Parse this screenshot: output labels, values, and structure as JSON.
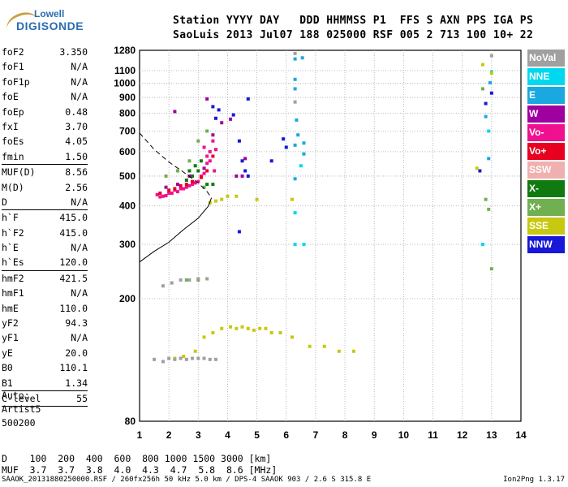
{
  "logo": {
    "line1": "Lowell",
    "line2": "DIGISONDE"
  },
  "header": {
    "line1": "Station YYYY DAY   DDD HHMMSS P1  FFS S AXN PPS IGA PS",
    "line2": "SaoLuis 2013 Jul07 188 025000 RSF 005 2 713 100 10+ 22"
  },
  "params": [
    {
      "k": "foF2",
      "v": "3.350"
    },
    {
      "k": "foF1",
      "v": "N/A"
    },
    {
      "k": "foF1p",
      "v": "N/A"
    },
    {
      "k": "foE",
      "v": "N/A"
    },
    {
      "k": "foEp",
      "v": "0.48"
    },
    {
      "k": "fxI",
      "v": "3.70"
    },
    {
      "k": "foEs",
      "v": "4.05"
    },
    {
      "k": "fmin",
      "v": "1.50"
    },
    {
      "k": "MUF(D)",
      "v": "8.56"
    },
    {
      "k": "M(D)",
      "v": "2.56"
    },
    {
      "k": "D",
      "v": "N/A"
    },
    {
      "k": "h`F",
      "v": "415.0"
    },
    {
      "k": "h`F2",
      "v": "415.0"
    },
    {
      "k": "h`E",
      "v": "N/A"
    },
    {
      "k": "h`Es",
      "v": "120.0"
    },
    {
      "k": "hmF2",
      "v": "421.5"
    },
    {
      "k": "hmF1",
      "v": "N/A"
    },
    {
      "k": "hmE",
      "v": "110.0"
    },
    {
      "k": "yF2",
      "v": "94.3"
    },
    {
      "k": "yF1",
      "v": "N/A"
    },
    {
      "k": "yE",
      "v": "20.0"
    },
    {
      "k": "B0",
      "v": "110.1"
    },
    {
      "k": "B1",
      "v": "1.34"
    },
    {
      "k": "C-level",
      "v": "55"
    }
  ],
  "auto": {
    "l1": "Auto:",
    "l2": "Artist5",
    "l3": "500200"
  },
  "legend": [
    {
      "label": "NoVal",
      "color": "#a0a0a0"
    },
    {
      "label": "NNE",
      "color": "#00d8f0"
    },
    {
      "label": "E",
      "color": "#1aa8e0"
    },
    {
      "label": "W",
      "color": "#a000a0"
    },
    {
      "label": "Vo-",
      "color": "#f01090"
    },
    {
      "label": "Vo+",
      "color": "#e80020"
    },
    {
      "label": "SSW",
      "color": "#f0b0b0"
    },
    {
      "label": "X-",
      "color": "#107a10"
    },
    {
      "label": "X+",
      "color": "#70b050"
    },
    {
      "label": "SSE",
      "color": "#c8c810"
    },
    {
      "label": "NNW",
      "color": "#1818d8"
    }
  ],
  "dmuf": {
    "line1": "D    100  200  400  600  800 1000 1500 3000 [km]",
    "line2": "MUF  3.7  3.7  3.8  4.0  4.3  4.7  5.8  8.6 [MHz]"
  },
  "footer": {
    "left": "SAAOK_20131880250000.RSF / 260fx256h 50 kHz 5.0 km / DPS-4 SAAOK 903 / 2.6 S 315.8 E",
    "right": "Ion2Png 1.3.17"
  },
  "chart_data": {
    "type": "scatter",
    "title": "",
    "xlabel": "",
    "ylabel": "",
    "xlim": [
      1,
      14
    ],
    "ylim": [
      80,
      1280
    ],
    "y_scale": "log",
    "grid": true,
    "x_ticks": [
      1,
      2,
      3,
      4,
      5,
      6,
      7,
      8,
      9,
      10,
      11,
      12,
      13,
      14
    ],
    "y_ticks": [
      80,
      200,
      300,
      400,
      500,
      600,
      700,
      800,
      900,
      1000,
      1100,
      1280
    ],
    "series": [
      {
        "color": "#f01090",
        "points": [
          [
            1.6,
            435
          ],
          [
            1.8,
            430
          ],
          [
            2.0,
            440
          ],
          [
            2.2,
            450
          ],
          [
            2.4,
            455
          ],
          [
            2.6,
            460
          ],
          [
            2.8,
            470
          ],
          [
            3.0,
            480
          ],
          [
            3.2,
            510
          ],
          [
            3.3,
            550
          ],
          [
            3.4,
            600
          ],
          [
            3.5,
            650
          ],
          [
            3.3,
            580
          ],
          [
            3.1,
            500
          ],
          [
            2.9,
            475
          ],
          [
            2.7,
            465
          ],
          [
            2.5,
            455
          ],
          [
            2.3,
            445
          ],
          [
            2.1,
            440
          ],
          [
            1.9,
            432
          ],
          [
            1.7,
            428
          ],
          [
            3.6,
            610
          ],
          [
            3.4,
            560
          ],
          [
            3.55,
            520
          ],
          [
            3.2,
            620
          ]
        ]
      },
      {
        "color": "#e80020",
        "points": [
          [
            1.7,
            440
          ],
          [
            2.0,
            450
          ],
          [
            2.4,
            465
          ],
          [
            2.8,
            480
          ],
          [
            3.1,
            495
          ],
          [
            3.3,
            520
          ],
          [
            3.5,
            580
          ],
          [
            2.6,
            470
          ],
          [
            2.2,
            455
          ]
        ]
      },
      {
        "color": "#107a10",
        "points": [
          [
            2.7,
            520
          ],
          [
            2.9,
            540
          ],
          [
            3.1,
            560
          ],
          [
            3.3,
            470
          ],
          [
            3.5,
            470
          ],
          [
            2.8,
            500
          ],
          [
            3.0,
            520
          ],
          [
            2.6,
            485
          ]
        ]
      },
      {
        "color": "#a000a0",
        "points": [
          [
            1.9,
            460
          ],
          [
            2.3,
            470
          ],
          [
            2.7,
            500
          ],
          [
            3.2,
            530
          ],
          [
            3.5,
            680
          ],
          [
            2.2,
            810
          ],
          [
            3.3,
            890
          ],
          [
            3.8,
            745
          ],
          [
            4.1,
            765
          ],
          [
            4.3,
            500
          ],
          [
            4.5,
            500
          ],
          [
            4.6,
            570
          ]
        ]
      },
      {
        "color": "#1818d8",
        "points": [
          [
            3.5,
            840
          ],
          [
            3.7,
            820
          ],
          [
            4.2,
            790
          ],
          [
            4.4,
            650
          ],
          [
            4.5,
            560
          ],
          [
            4.6,
            520
          ],
          [
            4.7,
            500
          ],
          [
            5.5,
            560
          ],
          [
            5.9,
            660
          ],
          [
            4.4,
            330
          ],
          [
            6.0,
            620
          ],
          [
            12.6,
            520
          ],
          [
            12.8,
            860
          ],
          [
            13.0,
            930
          ],
          [
            3.6,
            770
          ],
          [
            4.7,
            890
          ]
        ]
      },
      {
        "color": "#1aa8e0",
        "points": [
          [
            6.3,
            490
          ],
          [
            6.3,
            630
          ],
          [
            6.4,
            680
          ],
          [
            6.35,
            760
          ],
          [
            6.6,
            590
          ],
          [
            6.6,
            640
          ],
          [
            6.55,
            1210
          ],
          [
            6.3,
            1200
          ],
          [
            6.3,
            960
          ],
          [
            6.3,
            1030
          ],
          [
            12.8,
            780
          ],
          [
            12.9,
            570
          ],
          [
            12.95,
            1005
          ]
        ]
      },
      {
        "color": "#00d8f0",
        "points": [
          [
            6.3,
            380
          ],
          [
            6.3,
            300
          ],
          [
            6.5,
            540
          ],
          [
            6.6,
            300
          ],
          [
            12.9,
            700
          ],
          [
            13.0,
            1090
          ],
          [
            12.7,
            300
          ]
        ]
      },
      {
        "color": "#c8c810",
        "points": [
          [
            2.2,
            128
          ],
          [
            2.5,
            130
          ],
          [
            2.9,
            135
          ],
          [
            3.2,
            150
          ],
          [
            3.5,
            155
          ],
          [
            3.8,
            160
          ],
          [
            4.1,
            162
          ],
          [
            4.3,
            160
          ],
          [
            4.5,
            162
          ],
          [
            4.7,
            160
          ],
          [
            4.9,
            158
          ],
          [
            5.1,
            160
          ],
          [
            5.3,
            160
          ],
          [
            5.5,
            155
          ],
          [
            5.8,
            155
          ],
          [
            6.2,
            150
          ],
          [
            6.8,
            140
          ],
          [
            7.3,
            140
          ],
          [
            7.8,
            135
          ],
          [
            8.3,
            135
          ],
          [
            3.4,
            410
          ],
          [
            3.6,
            415
          ],
          [
            3.8,
            420
          ],
          [
            4.0,
            430
          ],
          [
            4.3,
            430
          ],
          [
            5.0,
            420
          ],
          [
            6.2,
            420
          ],
          [
            12.5,
            530
          ],
          [
            13.0,
            1080
          ],
          [
            12.7,
            1150
          ]
        ]
      },
      {
        "color": "#70b050",
        "points": [
          [
            1.9,
            500
          ],
          [
            2.3,
            520
          ],
          [
            2.7,
            560
          ],
          [
            3.0,
            650
          ],
          [
            3.3,
            700
          ],
          [
            3.2,
            460
          ],
          [
            2.6,
            230
          ],
          [
            3.0,
            230
          ],
          [
            13.0,
            250
          ],
          [
            12.9,
            390
          ],
          [
            12.8,
            420
          ],
          [
            12.7,
            960
          ]
        ]
      },
      {
        "color": "#a0a0a0",
        "points": [
          [
            1.5,
            127
          ],
          [
            1.8,
            125
          ],
          [
            2.0,
            128
          ],
          [
            2.2,
            127
          ],
          [
            2.4,
            128
          ],
          [
            2.6,
            127
          ],
          [
            2.8,
            128
          ],
          [
            3.0,
            128
          ],
          [
            3.2,
            128
          ],
          [
            3.4,
            127
          ],
          [
            3.6,
            127
          ],
          [
            1.8,
            220
          ],
          [
            2.1,
            225
          ],
          [
            2.4,
            230
          ],
          [
            2.7,
            230
          ],
          [
            3.0,
            232
          ],
          [
            3.3,
            232
          ],
          [
            6.3,
            870
          ],
          [
            6.3,
            1250
          ],
          [
            13.0,
            1230
          ]
        ]
      }
    ],
    "traces": [
      {
        "name": "",
        "style": "solid",
        "points": [
          [
            1.0,
            263
          ],
          [
            1.5,
            285
          ],
          [
            2.0,
            305
          ],
          [
            2.5,
            335
          ],
          [
            3.0,
            365
          ],
          [
            3.35,
            400
          ],
          [
            3.45,
            425
          ]
        ]
      },
      {
        "name": "",
        "style": "dashed",
        "points": [
          [
            1.0,
            690
          ],
          [
            1.5,
            610
          ],
          [
            2.0,
            555
          ],
          [
            2.5,
            515
          ],
          [
            3.0,
            475
          ],
          [
            3.3,
            445
          ],
          [
            3.45,
            425
          ]
        ]
      }
    ]
  }
}
